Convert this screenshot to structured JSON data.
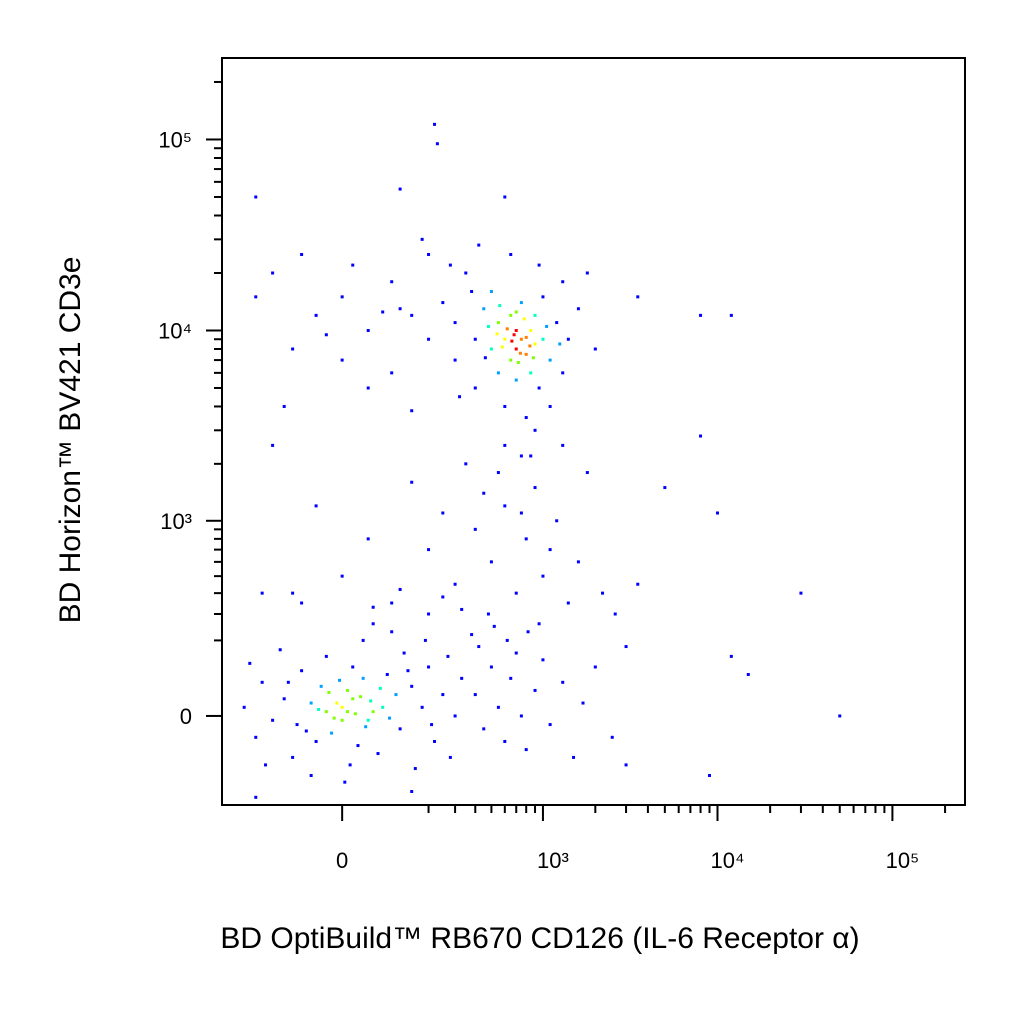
{
  "chart_data": {
    "type": "scatter",
    "x_label": "BD OptiBuild™ RB670 CD126 (IL-6 Receptor α)",
    "y_label": "BD Horizon™ BV421 CD3e",
    "xscale": "biexponential",
    "yscale": "biexponential",
    "xlim": [
      -333,
      260000
    ],
    "ylim": [
      -248,
      267000
    ],
    "xticks": [
      0,
      {
        "value": 1000,
        "label": "10³"
      },
      {
        "value": 10000,
        "label": "10⁴"
      },
      {
        "value": 100000,
        "label": "10⁵"
      }
    ],
    "yticks": [
      0,
      {
        "value": 1000,
        "label": "10³"
      },
      {
        "value": 10000,
        "label": "10⁴"
      },
      {
        "value": 100000,
        "label": "10⁵"
      }
    ],
    "xminorticks": [
      200,
      300,
      400,
      500,
      600,
      700,
      800,
      900,
      2000,
      3000,
      4000,
      5000,
      6000,
      7000,
      8000,
      9000,
      20000,
      30000,
      40000,
      50000,
      60000,
      70000,
      80000,
      90000,
      200000
    ],
    "yminorticks": [
      200,
      300,
      400,
      500,
      600,
      700,
      800,
      900,
      2000,
      3000,
      4000,
      5000,
      6000,
      7000,
      8000,
      9000,
      20000,
      30000,
      40000,
      50000,
      60000,
      70000,
      80000,
      90000,
      200000
    ],
    "colormap": [
      "#0000ff",
      "#00a0ff",
      "#00ffc0",
      "#80ff00",
      "#ffff00",
      "#ff8000",
      "#ff0000"
    ],
    "x": [
      0,
      20,
      -30,
      50,
      10,
      -60,
      80,
      -20,
      40,
      -90,
      110,
      30,
      -40,
      60,
      0,
      -10,
      25,
      -50,
      90,
      120,
      -120,
      150,
      -80,
      70,
      180,
      -150,
      200,
      -30,
      15,
      130,
      -100,
      220,
      -180,
      40,
      250,
      -200,
      160,
      -60,
      100,
      270,
      -130,
      300,
      -220,
      5,
      190,
      -170,
      330,
      60,
      -240,
      280,
      10,
      -15,
      35,
      55,
      -45,
      75,
      -25,
      95,
      -5,
      45,
      -70,
      140,
      -110,
      210,
      20,
      400,
      450,
      500,
      550,
      600,
      650,
      700,
      750,
      800,
      900,
      1000,
      1100,
      1300,
      1500,
      1700,
      2000,
      2500,
      3000,
      380,
      420,
      480,
      520,
      620,
      820,
      950,
      -100,
      0,
      100,
      200,
      300,
      400,
      500,
      600,
      700,
      800,
      900,
      1000,
      1200,
      1400,
      1600,
      1800,
      -50,
      50,
      150,
      250,
      350,
      450,
      550,
      750,
      850,
      1100,
      2200,
      2600,
      3500,
      1300,
      -150,
      200,
      120,
      60,
      -80,
      250,
      330,
      -150,
      -100,
      -50,
      0,
      0,
      50,
      100,
      100,
      150,
      200,
      200,
      250,
      300,
      300,
      350,
      400,
      400,
      450,
      500,
      500,
      550,
      550,
      600,
      600,
      650,
      650,
      700,
      700,
      700,
      750,
      750,
      800,
      800,
      850,
      850,
      900,
      900,
      950,
      1000,
      1000,
      1100,
      1100,
      1200,
      1300,
      1400,
      1600,
      1800,
      2000,
      600,
      750,
      900,
      -200,
      -80,
      20,
      180,
      420,
      650,
      950,
      1300,
      320,
      150,
      50,
      -120,
      480,
      580,
      680,
      780,
      880,
      560,
      720,
      620,
      800,
      660,
      740,
      540,
      840,
      700,
      460,
      1050,
      1250,
      380,
      280,
      120,
      -30,
      80,
      -200,
      120,
      220,
      230,
      600,
      8000,
      12000,
      3500,
      5000,
      8000,
      10000,
      30000,
      50000,
      12000,
      15000,
      9000,
      3000,
      -200,
      150,
      -180
    ],
    "values": [
      20,
      40,
      10,
      -10,
      60,
      30,
      20,
      -40,
      90,
      -20,
      50,
      -70,
      70,
      10,
      -10,
      30,
      5,
      -60,
      100,
      -30,
      40,
      70,
      110,
      -90,
      20,
      -10,
      120,
      150,
      -120,
      160,
      -100,
      -60,
      80,
      200,
      50,
      -50,
      -130,
      -150,
      230,
      150,
      170,
      0,
      130,
      -170,
      200,
      -120,
      90,
      260,
      20,
      -100,
      10,
      -5,
      45,
      35,
      15,
      65,
      55,
      -5,
      85,
      -25,
      -35,
      110,
      80,
      -20,
      120,
      50,
      -30,
      120,
      20,
      -60,
      90,
      160,
      0,
      -80,
      60,
      140,
      -20,
      80,
      -100,
      30,
      120,
      -50,
      180,
      220,
      180,
      300,
      250,
      200,
      230,
      260,
      400,
      500,
      350,
      700,
      450,
      900,
      600,
      1200,
      400,
      800,
      1500,
      500,
      1000,
      350,
      600,
      1800,
      1200,
      800,
      1600,
      1100,
      2000,
      1400,
      1800,
      1100,
      2200,
      700,
      400,
      300,
      450,
      2500,
      2500,
      300,
      420,
      330,
      350,
      380,
      320,
      20000,
      8000,
      12000,
      15000,
      7000,
      10000,
      18000,
      6000,
      12000,
      9000,
      25000,
      14000,
      7000,
      11000,
      20000,
      9000,
      5000,
      13000,
      8000,
      16000,
      6000,
      11000,
      9000,
      4000,
      12000,
      7000,
      8000,
      10000,
      5500,
      9000,
      14000,
      7500,
      3500,
      10000,
      6000,
      8500,
      12000,
      5000,
      9000,
      15000,
      7000,
      4000,
      11000,
      6000,
      9000,
      13000,
      20000,
      8000,
      2500,
      2200,
      3000,
      15000,
      25000,
      22000,
      30000,
      28000,
      25000,
      22000,
      18000,
      4500,
      3800,
      5000,
      4000,
      10500,
      8200,
      9500,
      11500,
      7200,
      13500,
      6800,
      10200,
      9200,
      8800,
      7600,
      9600,
      8300,
      12500,
      7200,
      10500,
      8500,
      16000,
      22000,
      13000,
      9500,
      12500,
      50000,
      55000,
      120000,
      95000,
      50000,
      12000,
      12000,
      15000,
      1500,
      2800,
      1100,
      400,
      0,
      150,
      100,
      -150,
      -120,
      -220,
      -200,
      400
    ]
  }
}
